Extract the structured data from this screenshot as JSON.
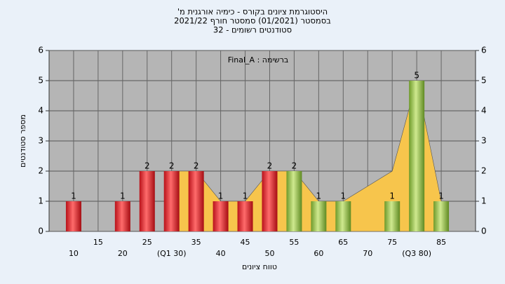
{
  "chart_data": {
    "type": "bar",
    "title": [
      "היסטוגרמת ציונים בקורס - כימיה אורגנית מ'",
      "בסמסטר  (01/2021)  סמסטר חורף 2021/22",
      "סטודנטים רשומים - 32"
    ],
    "annotation": "ברשימה : Final_A",
    "x_label": "טווח ציונים",
    "y_label": "מספר סטודנטים",
    "x": [
      10,
      15,
      20,
      25,
      30,
      35,
      40,
      45,
      50,
      55,
      60,
      65,
      70,
      75,
      80,
      85
    ],
    "values": [
      1,
      0,
      1,
      2,
      2,
      2,
      1,
      1,
      2,
      2,
      1,
      1,
      0,
      1,
      5,
      1
    ],
    "value_labels": [
      "1",
      null,
      "1",
      "2",
      "2",
      "2",
      "1",
      "1",
      "2",
      "2",
      "1",
      "1",
      null,
      "1",
      "5",
      "1"
    ],
    "colors": [
      "red",
      "red",
      "red",
      "red",
      "red",
      "red",
      "red",
      "red",
      "red",
      "green",
      "green",
      "green",
      "green",
      "green",
      "green",
      "green"
    ],
    "area": {
      "color": "#f7c54c",
      "values": [
        null,
        null,
        null,
        null,
        2,
        2,
        1,
        1,
        2,
        2,
        1,
        1,
        1.5,
        2,
        5,
        1
      ]
    },
    "xlim": [
      5,
      92
    ],
    "xticks": [
      10,
      15,
      20,
      25,
      {
        "value": 30,
        "label": "(Q1 30)"
      },
      35,
      40,
      45,
      50,
      55,
      60,
      65,
      70,
      75,
      {
        "value": 80,
        "label": "(Q3 80)"
      },
      85
    ],
    "ylim": [
      0,
      6
    ],
    "yticks": [
      0,
      1,
      2,
      3,
      4,
      5,
      6
    ],
    "grid": true
  }
}
